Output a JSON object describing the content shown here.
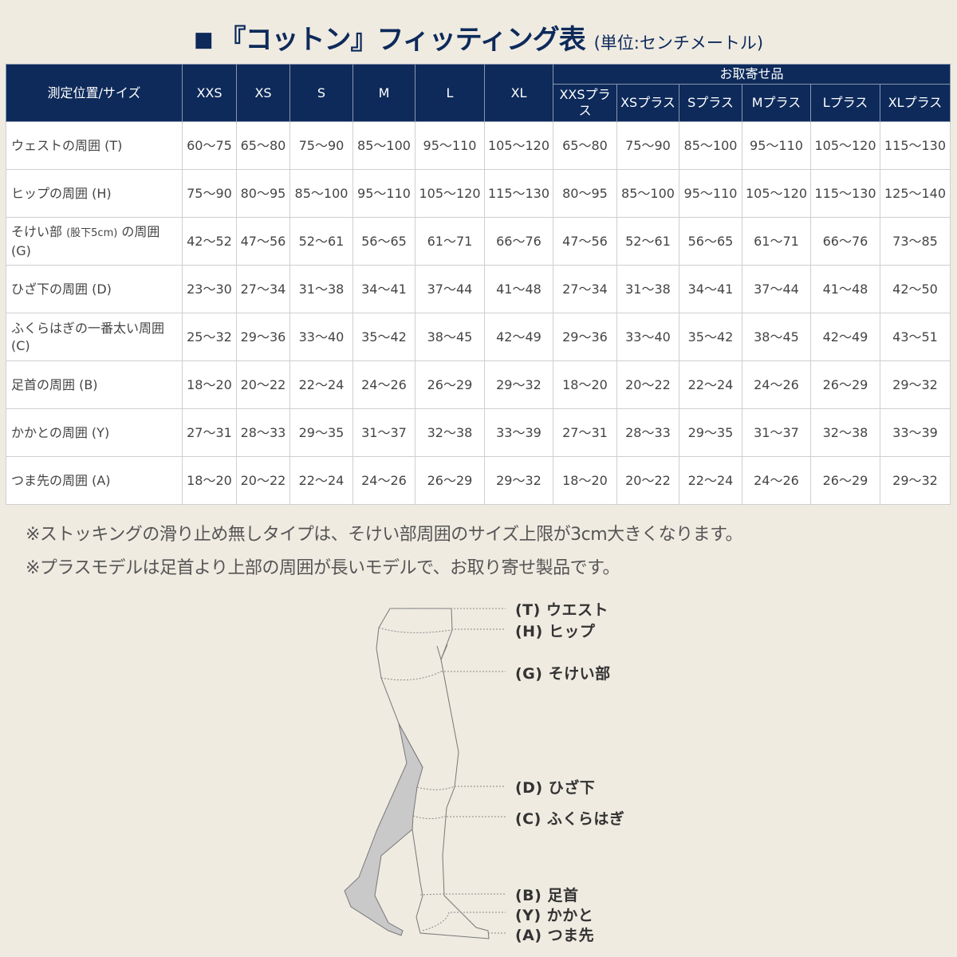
{
  "title": {
    "main": "『コットン』フィッティング表",
    "unit": "(単位:センチメートル)",
    "bullet_icon": "square"
  },
  "table": {
    "corner_header": "測定位置/サイズ",
    "sizes": [
      "XXS",
      "XS",
      "S",
      "M",
      "L",
      "XL"
    ],
    "order_group_header": "お取寄せ品",
    "plus_sizes": [
      "XXSプラス",
      "XSプラス",
      "Sプラス",
      "Mプラス",
      "Lプラス",
      "XLプラス"
    ],
    "rows": [
      {
        "label": "ウェストの周囲 (T)",
        "values": [
          "60～75",
          "65～80",
          "75～90",
          "85～100",
          "95～110",
          "105～120",
          "65～80",
          "75～90",
          "85～100",
          "95～110",
          "105～120",
          "115～130"
        ]
      },
      {
        "label": "ヒップの周囲 (H)",
        "values": [
          "75～90",
          "80～95",
          "85～100",
          "95～110",
          "105～120",
          "115～130",
          "80～95",
          "85～100",
          "95～110",
          "105～120",
          "115～130",
          "125～140"
        ]
      },
      {
        "label": "そけい部 ",
        "label_small": "(股下5cm)",
        "label_end": " の周囲 (G)",
        "values": [
          "42～52",
          "47～56",
          "52～61",
          "56～65",
          "61～71",
          "66～76",
          "47～56",
          "52～61",
          "56～65",
          "61～71",
          "66～76",
          "73～85"
        ]
      },
      {
        "label": "ひざ下の周囲 (D)",
        "values": [
          "23～30",
          "27～34",
          "31～38",
          "34～41",
          "37～44",
          "41～48",
          "27～34",
          "31～38",
          "34～41",
          "37～44",
          "41～48",
          "42～50"
        ]
      },
      {
        "label": "ふくらはぎの一番太い周囲 (C)",
        "values": [
          "25～32",
          "29～36",
          "33～40",
          "35～42",
          "38～45",
          "42～49",
          "29～36",
          "33～40",
          "35～42",
          "38～45",
          "42～49",
          "43～51"
        ]
      },
      {
        "label": "足首の周囲 (B)",
        "values": [
          "18～20",
          "20～22",
          "22～24",
          "24～26",
          "26～29",
          "29～32",
          "18～20",
          "20～22",
          "22～24",
          "24～26",
          "26～29",
          "29～32"
        ]
      },
      {
        "label": "かかとの周囲 (Y)",
        "values": [
          "27～31",
          "28～33",
          "29～35",
          "31～37",
          "32～38",
          "33～39",
          "27～31",
          "28～33",
          "29～35",
          "31～37",
          "32～38",
          "33～39"
        ]
      },
      {
        "label": "つま先の周囲 (A)",
        "values": [
          "18～20",
          "20～22",
          "22～24",
          "24～26",
          "26～29",
          "29～32",
          "18～20",
          "20～22",
          "22～24",
          "24～26",
          "26～29",
          "29～32"
        ]
      }
    ]
  },
  "notes": [
    "※ストッキングの滑り止め無しタイプは、そけい部周囲のサイズ上限が3cm大きくなります。",
    "※プラスモデルは足首より上部の周囲が長いモデルで、お取り寄せ製品です。"
  ],
  "diagram": {
    "labels": [
      "(T) ウエスト",
      "(H) ヒップ",
      "(G) そけい部",
      "(D) ひざ下",
      "(C) ふくらはぎ",
      "(B) 足首",
      "(Y) かかと",
      "(A) つま先"
    ]
  },
  "colors": {
    "header_bg": "#0d2a5a",
    "background": "#efebe1",
    "leg_shade": "#c9c9c9"
  }
}
